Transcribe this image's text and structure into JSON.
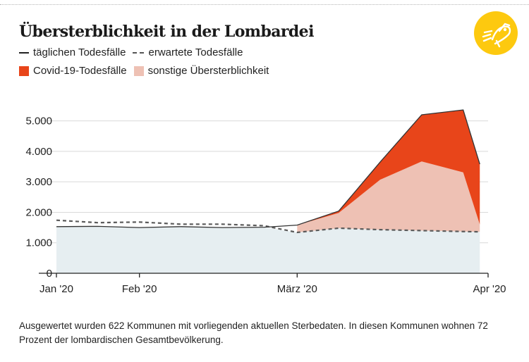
{
  "title": "Übersterblichkeit in der Lombardei",
  "legend": {
    "daily": "täglichen Todesfälle",
    "expected": "erwartete Todesfälle",
    "covid": "Covid-19-Todesfälle",
    "other": "sonstige Übersterblichkeit"
  },
  "colors": {
    "covid": "#e8451a",
    "other": "#eec1b4",
    "baseline": "#e6eef1",
    "line": "#333333",
    "logo": "#fdc90f"
  },
  "logo_icon": "publisher-logo-icon",
  "chart_data": {
    "type": "area",
    "title": "Übersterblichkeit in der Lombardei",
    "x": [
      0,
      5,
      10,
      15,
      20,
      25,
      29,
      34,
      39,
      44,
      49,
      51
    ],
    "x_range": [
      0,
      52
    ],
    "y_range": [
      0,
      5500
    ],
    "y_ticks": [
      0,
      1000,
      2000,
      3000,
      4000,
      5000
    ],
    "y_tick_labels": [
      "0",
      "1.000",
      "2.000",
      "3.000",
      "4.000",
      "5.000"
    ],
    "x_ticks": [
      0,
      10,
      29,
      52
    ],
    "x_tick_labels": [
      "Jan '20",
      "Feb '20",
      "März '20",
      "Apr '20"
    ],
    "series": [
      {
        "name": "täglichen Todesfälle",
        "values": [
          1530,
          1540,
          1500,
          1530,
          1500,
          1510,
          1580,
          2040,
          3650,
          5200,
          5360,
          3580
        ]
      },
      {
        "name": "erwartete Todesfälle",
        "values": [
          1740,
          1660,
          1680,
          1610,
          1610,
          1560,
          1340,
          1480,
          1430,
          1400,
          1370,
          1360
        ]
      },
      {
        "name": "Covid-19-Todesfälle",
        "values": [
          0,
          0,
          0,
          0,
          0,
          0,
          0,
          60,
          580,
          1530,
          2050,
          1980
        ]
      },
      {
        "name": "sonstige Übersterblichkeit",
        "values": [
          0,
          0,
          0,
          0,
          0,
          0,
          240,
          500,
          1640,
          2270,
          1940,
          240
        ]
      }
    ]
  },
  "note": "Ausgewertet wurden 622 Kommunen mit vorliegenden aktuellen Sterbedaten. In diesen Kommunen wohnen 72 Prozent der lombardischen Gesamtbevölkerung."
}
